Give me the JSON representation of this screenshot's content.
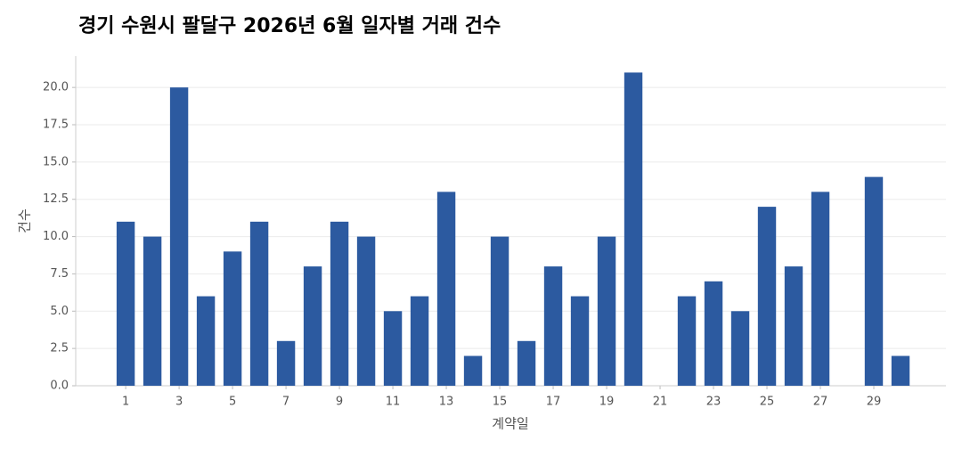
{
  "chart_data": {
    "type": "bar",
    "title": "경기 수원시 팔달구 2026년 6월 일자별 거래 건수",
    "x_label": "계약일",
    "y_label": "건수",
    "color": "#2c5aa0",
    "grid": true,
    "x": [
      1,
      2,
      3,
      4,
      5,
      6,
      7,
      8,
      9,
      10,
      11,
      12,
      13,
      14,
      15,
      16,
      17,
      18,
      19,
      20,
      22,
      23,
      24,
      25,
      26,
      27,
      29,
      30
    ],
    "values": [
      11,
      10,
      20,
      6,
      9,
      11,
      3,
      8,
      11,
      10,
      5,
      6,
      13,
      2,
      10,
      3,
      8,
      6,
      10,
      21,
      6,
      7,
      5,
      12,
      8,
      13,
      14,
      2
    ],
    "xlim": [
      -0.87,
      31.7
    ],
    "xticks": [
      1,
      3,
      5,
      7,
      9,
      11,
      13,
      15,
      17,
      19,
      21,
      23,
      25,
      27,
      29
    ],
    "ylim": [
      0,
      22.1
    ],
    "yticks": [
      {
        "value": 0,
        "label": "0.0"
      },
      {
        "value": 2.5,
        "label": "2.5"
      },
      {
        "value": 5,
        "label": "5.0"
      },
      {
        "value": 7.5,
        "label": "7.5"
      },
      {
        "value": 10,
        "label": "10.0"
      },
      {
        "value": 12.5,
        "label": "12.5"
      },
      {
        "value": 15,
        "label": "15.0"
      },
      {
        "value": 17.5,
        "label": "17.5"
      },
      {
        "value": 20,
        "label": "20.0"
      }
    ]
  }
}
